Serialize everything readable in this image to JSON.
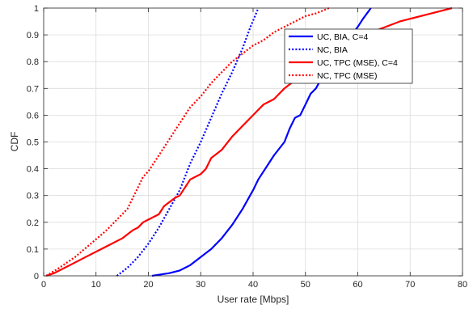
{
  "chart_data": {
    "type": "line",
    "xlabel": "User rate [Mbps]",
    "ylabel": "CDF",
    "xlim": [
      0,
      80
    ],
    "ylim": [
      0,
      1
    ],
    "xticks": [
      0,
      10,
      20,
      30,
      40,
      50,
      60,
      70,
      80
    ],
    "yticks": [
      0,
      0.1,
      0.2,
      0.3,
      0.4,
      0.5,
      0.6,
      0.7,
      0.8,
      0.9,
      1
    ],
    "grid": true,
    "legend_position": "top-right",
    "series": [
      {
        "name": "UC, BIA, C=4",
        "color": "#0000ff",
        "style": "solid",
        "points": [
          [
            20.7,
            0
          ],
          [
            24,
            0.01
          ],
          [
            26,
            0.02
          ],
          [
            28,
            0.04
          ],
          [
            30,
            0.07
          ],
          [
            32,
            0.1
          ],
          [
            34,
            0.14
          ],
          [
            36,
            0.19
          ],
          [
            38,
            0.25
          ],
          [
            40,
            0.32
          ],
          [
            41,
            0.36
          ],
          [
            43,
            0.42
          ],
          [
            44,
            0.45
          ],
          [
            46,
            0.5
          ],
          [
            47,
            0.55
          ],
          [
            48,
            0.59
          ],
          [
            49,
            0.6
          ],
          [
            50,
            0.64
          ],
          [
            51,
            0.68
          ],
          [
            52,
            0.7
          ],
          [
            54,
            0.77
          ],
          [
            55,
            0.8
          ],
          [
            57,
            0.85
          ],
          [
            58,
            0.88
          ],
          [
            60,
            0.93
          ],
          [
            61,
            0.96
          ],
          [
            62.5,
            1
          ]
        ]
      },
      {
        "name": "NC, BIA",
        "color": "#0000ff",
        "style": "dotted",
        "points": [
          [
            14,
            0
          ],
          [
            16,
            0.03
          ],
          [
            18,
            0.07
          ],
          [
            20,
            0.12
          ],
          [
            22,
            0.18
          ],
          [
            24,
            0.25
          ],
          [
            26,
            0.32
          ],
          [
            28,
            0.42
          ],
          [
            30,
            0.5
          ],
          [
            32,
            0.59
          ],
          [
            34,
            0.68
          ],
          [
            36,
            0.76
          ],
          [
            38,
            0.85
          ],
          [
            39.5,
            0.93
          ],
          [
            41,
            1
          ]
        ]
      },
      {
        "name": "UC, TPC (MSE), C=4",
        "color": "#ff0000",
        "style": "solid",
        "points": [
          [
            0.5,
            0
          ],
          [
            2,
            0.01
          ],
          [
            5,
            0.04
          ],
          [
            8,
            0.07
          ],
          [
            12,
            0.11
          ],
          [
            15,
            0.14
          ],
          [
            17,
            0.17
          ],
          [
            18,
            0.18
          ],
          [
            19,
            0.2
          ],
          [
            20,
            0.21
          ],
          [
            22,
            0.23
          ],
          [
            23,
            0.26
          ],
          [
            25,
            0.29
          ],
          [
            26,
            0.3
          ],
          [
            27,
            0.33
          ],
          [
            28,
            0.36
          ],
          [
            29,
            0.37
          ],
          [
            30,
            0.38
          ],
          [
            31,
            0.4
          ],
          [
            32,
            0.44
          ],
          [
            34,
            0.47
          ],
          [
            36,
            0.52
          ],
          [
            38,
            0.56
          ],
          [
            40,
            0.6
          ],
          [
            42,
            0.64
          ],
          [
            44,
            0.66
          ],
          [
            46,
            0.7
          ],
          [
            48,
            0.73
          ],
          [
            50,
            0.75
          ],
          [
            52,
            0.79
          ],
          [
            54,
            0.83
          ],
          [
            56,
            0.86
          ],
          [
            58,
            0.88
          ],
          [
            60,
            0.9
          ],
          [
            64,
            0.92
          ],
          [
            68,
            0.95
          ],
          [
            72,
            0.97
          ],
          [
            76,
            0.99
          ],
          [
            78,
            1
          ]
        ]
      },
      {
        "name": "NC, TPC (MSE)",
        "color": "#ff0000",
        "style": "dotted",
        "points": [
          [
            0.5,
            0
          ],
          [
            3,
            0.03
          ],
          [
            6,
            0.07
          ],
          [
            9,
            0.12
          ],
          [
            12,
            0.17
          ],
          [
            14,
            0.21
          ],
          [
            16,
            0.25
          ],
          [
            17,
            0.29
          ],
          [
            18,
            0.33
          ],
          [
            19,
            0.37
          ],
          [
            20,
            0.39
          ],
          [
            22,
            0.45
          ],
          [
            24,
            0.51
          ],
          [
            26,
            0.57
          ],
          [
            28,
            0.63
          ],
          [
            30,
            0.67
          ],
          [
            32,
            0.72
          ],
          [
            34,
            0.76
          ],
          [
            36,
            0.8
          ],
          [
            38,
            0.83
          ],
          [
            40,
            0.86
          ],
          [
            42,
            0.88
          ],
          [
            44,
            0.91
          ],
          [
            46,
            0.93
          ],
          [
            48,
            0.95
          ],
          [
            50,
            0.97
          ],
          [
            52,
            0.98
          ],
          [
            54.5,
            1
          ]
        ]
      }
    ]
  }
}
